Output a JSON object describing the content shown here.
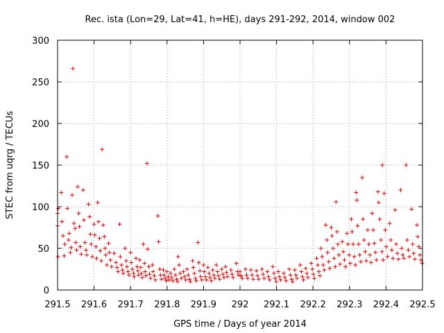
{
  "chart_data": {
    "type": "scatter",
    "title": "Rec. ista (Lon=29, Lat=41, h=HE), days 291-292, 2014, window 002",
    "xlabel": "GPS time / Days of year 2014",
    "ylabel": "STEC from uqrg / TECUs",
    "xlim": [
      291.5,
      292.5
    ],
    "ylim": [
      0,
      300
    ],
    "xticks": [
      "291.5",
      "291.6",
      "291.7",
      "291.8",
      "291.9",
      "292",
      "292.1",
      "292.2",
      "292.3",
      "292.4",
      "292.5"
    ],
    "yticks": [
      "0",
      "50",
      "100",
      "150",
      "200",
      "250",
      "300"
    ],
    "grid": true,
    "marker": "+",
    "color": "#e00000",
    "series": [
      {
        "points": [
          [
            291.5,
            92
          ],
          [
            291.5,
            77
          ],
          [
            291.501,
            40
          ],
          [
            291.502,
            98
          ],
          [
            291.51,
            117
          ],
          [
            291.512,
            82
          ],
          [
            291.515,
            65
          ],
          [
            291.518,
            41
          ],
          [
            291.52,
            55
          ],
          [
            291.525,
            160
          ],
          [
            291.527,
            98
          ],
          [
            291.53,
            60
          ],
          [
            291.532,
            68
          ],
          [
            291.535,
            45
          ],
          [
            291.537,
            51
          ],
          [
            291.54,
            114
          ],
          [
            291.542,
            266
          ],
          [
            291.545,
            80
          ],
          [
            291.548,
            74
          ],
          [
            291.55,
            57
          ],
          [
            291.552,
            48
          ],
          [
            291.555,
            124
          ],
          [
            291.558,
            92
          ],
          [
            291.56,
            76
          ],
          [
            291.562,
            52
          ],
          [
            291.565,
            43
          ],
          [
            291.57,
            120
          ],
          [
            291.572,
            84
          ],
          [
            291.575,
            57
          ],
          [
            291.578,
            48
          ],
          [
            291.58,
            42
          ],
          [
            291.585,
            103
          ],
          [
            291.588,
            88
          ],
          [
            291.59,
            67
          ],
          [
            291.592,
            55
          ],
          [
            291.595,
            40
          ],
          [
            291.6,
            79
          ],
          [
            291.602,
            66
          ],
          [
            291.605,
            52
          ],
          [
            291.607,
            38
          ],
          [
            291.61,
            105
          ],
          [
            291.612,
            82
          ],
          [
            291.615,
            62
          ],
          [
            291.617,
            47
          ],
          [
            291.62,
            35
          ],
          [
            291.622,
            169
          ],
          [
            291.625,
            78
          ],
          [
            291.628,
            64
          ],
          [
            291.63,
            50
          ],
          [
            291.632,
            42
          ],
          [
            291.635,
            30
          ],
          [
            291.64,
            56
          ],
          [
            291.642,
            45
          ],
          [
            291.645,
            36
          ],
          [
            291.648,
            28
          ],
          [
            291.655,
            44
          ],
          [
            291.66,
            33
          ],
          [
            291.663,
            27
          ],
          [
            291.666,
            22
          ],
          [
            291.67,
            79
          ],
          [
            291.672,
            40
          ],
          [
            291.675,
            30
          ],
          [
            291.678,
            24
          ],
          [
            291.68,
            20
          ],
          [
            291.685,
            50
          ],
          [
            291.688,
            35
          ],
          [
            291.69,
            28
          ],
          [
            291.693,
            22
          ],
          [
            291.696,
            18
          ],
          [
            291.7,
            45
          ],
          [
            291.702,
            33
          ],
          [
            291.705,
            25
          ],
          [
            291.708,
            20
          ],
          [
            291.71,
            16
          ],
          [
            291.715,
            38
          ],
          [
            291.718,
            28
          ],
          [
            291.72,
            23
          ],
          [
            291.722,
            18
          ],
          [
            291.725,
            36
          ],
          [
            291.728,
            27
          ],
          [
            291.73,
            20
          ],
          [
            291.732,
            15
          ],
          [
            291.735,
            55
          ],
          [
            291.738,
            32
          ],
          [
            291.74,
            22
          ],
          [
            291.742,
            17
          ],
          [
            291.745,
            152
          ],
          [
            291.747,
            49
          ],
          [
            291.75,
            28
          ],
          [
            291.752,
            19
          ],
          [
            291.755,
            14
          ],
          [
            291.76,
            30
          ],
          [
            291.762,
            22
          ],
          [
            291.765,
            17
          ],
          [
            291.768,
            12
          ],
          [
            291.775,
            89
          ],
          [
            291.777,
            58
          ],
          [
            291.78,
            25
          ],
          [
            291.782,
            18
          ],
          [
            291.785,
            13
          ],
          [
            291.79,
            24
          ],
          [
            291.792,
            18
          ],
          [
            291.795,
            14
          ],
          [
            291.798,
            11
          ],
          [
            291.8,
            22
          ],
          [
            291.803,
            16
          ],
          [
            291.806,
            12
          ],
          [
            291.81,
            20
          ],
          [
            291.813,
            15
          ],
          [
            291.816,
            11
          ],
          [
            291.82,
            25
          ],
          [
            291.823,
            18
          ],
          [
            291.826,
            13
          ],
          [
            291.829,
            10
          ],
          [
            291.83,
            40
          ],
          [
            291.833,
            30
          ],
          [
            291.836,
            20
          ],
          [
            291.839,
            14
          ],
          [
            291.845,
            22
          ],
          [
            291.848,
            16
          ],
          [
            291.851,
            12
          ],
          [
            291.855,
            25
          ],
          [
            291.858,
            18
          ],
          [
            291.861,
            13
          ],
          [
            291.864,
            10
          ],
          [
            291.87,
            35
          ],
          [
            291.872,
            27
          ],
          [
            291.875,
            20
          ],
          [
            291.878,
            14
          ],
          [
            291.88,
            11
          ],
          [
            291.885,
            57
          ],
          [
            291.887,
            33
          ],
          [
            291.89,
            23
          ],
          [
            291.892,
            16
          ],
          [
            291.895,
            12
          ],
          [
            291.9,
            30
          ],
          [
            291.902,
            22
          ],
          [
            291.905,
            16
          ],
          [
            291.908,
            12
          ],
          [
            291.912,
            27
          ],
          [
            291.915,
            20
          ],
          [
            291.918,
            15
          ],
          [
            291.921,
            11
          ],
          [
            291.925,
            24
          ],
          [
            291.928,
            18
          ],
          [
            291.931,
            14
          ],
          [
            291.935,
            30
          ],
          [
            291.938,
            22
          ],
          [
            291.941,
            17
          ],
          [
            291.944,
            13
          ],
          [
            291.95,
            25
          ],
          [
            291.953,
            19
          ],
          [
            291.956,
            15
          ],
          [
            291.96,
            28
          ],
          [
            291.963,
            21
          ],
          [
            291.966,
            16
          ],
          [
            291.975,
            24
          ],
          [
            291.978,
            19
          ],
          [
            291.981,
            15
          ],
          [
            291.99,
            32
          ],
          [
            291.993,
            22
          ],
          [
            291.996,
            18
          ],
          [
            292.0,
            22
          ],
          [
            292.003,
            17
          ],
          [
            292.006,
            14
          ],
          [
            292.015,
            25
          ],
          [
            292.018,
            18
          ],
          [
            292.021,
            14
          ],
          [
            292.03,
            24
          ],
          [
            292.033,
            18
          ],
          [
            292.036,
            13
          ],
          [
            292.045,
            23
          ],
          [
            292.048,
            17
          ],
          [
            292.051,
            13
          ],
          [
            292.06,
            25
          ],
          [
            292.063,
            19
          ],
          [
            292.066,
            14
          ],
          [
            292.075,
            22
          ],
          [
            292.078,
            16
          ],
          [
            292.081,
            12
          ],
          [
            292.09,
            28
          ],
          [
            292.093,
            20
          ],
          [
            292.096,
            14
          ],
          [
            292.099,
            10
          ],
          [
            292.105,
            22
          ],
          [
            292.108,
            16
          ],
          [
            292.111,
            12
          ],
          [
            292.12,
            20
          ],
          [
            292.123,
            15
          ],
          [
            292.126,
            11
          ],
          [
            292.135,
            25
          ],
          [
            292.138,
            18
          ],
          [
            292.141,
            13
          ],
          [
            292.144,
            10
          ],
          [
            292.15,
            24
          ],
          [
            292.153,
            18
          ],
          [
            292.156,
            14
          ],
          [
            292.165,
            30
          ],
          [
            292.168,
            22
          ],
          [
            292.171,
            16
          ],
          [
            292.174,
            12
          ],
          [
            292.18,
            26
          ],
          [
            292.183,
            20
          ],
          [
            292.186,
            15
          ],
          [
            292.195,
            32
          ],
          [
            292.198,
            25
          ],
          [
            292.201,
            19
          ],
          [
            292.204,
            14
          ],
          [
            292.21,
            38
          ],
          [
            292.213,
            30
          ],
          [
            292.216,
            22
          ],
          [
            292.219,
            17
          ],
          [
            292.222,
            50
          ],
          [
            292.225,
            40
          ],
          [
            292.228,
            30
          ],
          [
            292.231,
            24
          ],
          [
            292.235,
            78
          ],
          [
            292.238,
            60
          ],
          [
            292.24,
            45
          ],
          [
            292.243,
            34
          ],
          [
            292.246,
            26
          ],
          [
            292.25,
            75
          ],
          [
            292.252,
            65
          ],
          [
            292.255,
            50
          ],
          [
            292.258,
            38
          ],
          [
            292.261,
            28
          ],
          [
            292.263,
            106
          ],
          [
            292.266,
            70
          ],
          [
            292.268,
            55
          ],
          [
            292.271,
            42
          ],
          [
            292.274,
            31
          ],
          [
            292.28,
            58
          ],
          [
            292.283,
            46
          ],
          [
            292.286,
            36
          ],
          [
            292.289,
            28
          ],
          [
            292.293,
            68
          ],
          [
            292.296,
            55
          ],
          [
            292.299,
            42
          ],
          [
            292.302,
            32
          ],
          [
            292.305,
            85
          ],
          [
            292.307,
            70
          ],
          [
            292.31,
            55
          ],
          [
            292.313,
            40
          ],
          [
            292.316,
            30
          ],
          [
            292.318,
            117
          ],
          [
            292.32,
            108
          ],
          [
            292.322,
            77
          ],
          [
            292.325,
            55
          ],
          [
            292.328,
            42
          ],
          [
            292.331,
            34
          ],
          [
            292.335,
            135
          ],
          [
            292.337,
            85
          ],
          [
            292.34,
            60
          ],
          [
            292.343,
            46
          ],
          [
            292.346,
            35
          ],
          [
            292.35,
            72
          ],
          [
            292.353,
            55
          ],
          [
            292.356,
            42
          ],
          [
            292.359,
            33
          ],
          [
            292.362,
            92
          ],
          [
            292.365,
            72
          ],
          [
            292.368,
            56
          ],
          [
            292.371,
            45
          ],
          [
            292.374,
            36
          ],
          [
            292.378,
            118
          ],
          [
            292.38,
            105
          ],
          [
            292.383,
            85
          ],
          [
            292.386,
            60
          ],
          [
            292.389,
            46
          ],
          [
            292.392,
            36
          ],
          [
            292.39,
            150
          ],
          [
            292.395,
            116
          ],
          [
            292.398,
            72
          ],
          [
            292.401,
            52
          ],
          [
            292.404,
            40
          ],
          [
            292.41,
            80
          ],
          [
            292.413,
            60
          ],
          [
            292.416,
            48
          ],
          [
            292.419,
            38
          ],
          [
            292.425,
            96
          ],
          [
            292.428,
            55
          ],
          [
            292.431,
            44
          ],
          [
            292.434,
            37
          ],
          [
            292.44,
            120
          ],
          [
            292.443,
            50
          ],
          [
            292.446,
            42
          ],
          [
            292.449,
            38
          ],
          [
            292.455,
            150
          ],
          [
            292.458,
            60
          ],
          [
            292.461,
            48
          ],
          [
            292.464,
            40
          ],
          [
            292.47,
            97
          ],
          [
            292.473,
            55
          ],
          [
            292.476,
            44
          ],
          [
            292.479,
            37
          ],
          [
            292.485,
            78
          ],
          [
            292.487,
            64
          ],
          [
            292.49,
            52
          ],
          [
            292.493,
            42
          ],
          [
            292.496,
            36
          ],
          [
            292.499,
            32
          ]
        ]
      }
    ]
  }
}
